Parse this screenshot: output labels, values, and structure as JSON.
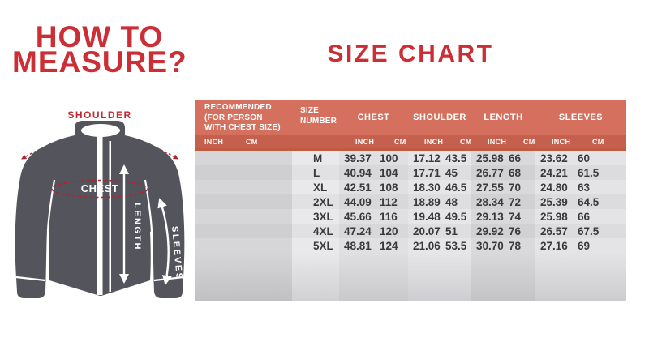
{
  "left_panel": {
    "title_line1": "HOW TO",
    "title_line2": "MEASURE?",
    "jacket": {
      "shoulder_label": "SHOULDER",
      "chest_label": "CHEST",
      "length_label": "LENGTH",
      "sleeves_label": "SLEEVES"
    }
  },
  "size_chart": {
    "title": "SIZE CHART",
    "header": {
      "recommended_lines": [
        "RECOMMENDED",
        "(FOR PERSON",
        "WITH CHEST SIZE)"
      ],
      "size_number_lines": [
        "SIZE",
        "NUMBER"
      ],
      "groups": [
        "CHEST",
        "SHOULDER",
        "LENGTH",
        "SLEEVES"
      ],
      "unit_inch": "INCH",
      "unit_cm": "CM"
    },
    "rows": [
      {
        "size": "M",
        "chest_inch": "39.37",
        "chest_cm": "100",
        "shoulder_inch": "17.12",
        "shoulder_cm": "43.5",
        "length_inch": "25.98",
        "length_cm": "66",
        "sleeves_inch": "23.62",
        "sleeves_cm": "60"
      },
      {
        "size": "L",
        "chest_inch": "40.94",
        "chest_cm": "104",
        "shoulder_inch": "17.71",
        "shoulder_cm": "45",
        "length_inch": "26.77",
        "length_cm": "68",
        "sleeves_inch": "24.21",
        "sleeves_cm": "61.5"
      },
      {
        "size": "XL",
        "chest_inch": "42.51",
        "chest_cm": "108",
        "shoulder_inch": "18.30",
        "shoulder_cm": "46.5",
        "length_inch": "27.55",
        "length_cm": "70",
        "sleeves_inch": "24.80",
        "sleeves_cm": "63"
      },
      {
        "size": "2XL",
        "chest_inch": "44.09",
        "chest_cm": "112",
        "shoulder_inch": "18.89",
        "shoulder_cm": "48",
        "length_inch": "28.34",
        "length_cm": "72",
        "sleeves_inch": "25.39",
        "sleeves_cm": "64.5"
      },
      {
        "size": "3XL",
        "chest_inch": "45.66",
        "chest_cm": "116",
        "shoulder_inch": "19.48",
        "shoulder_cm": "49.5",
        "length_inch": "29.13",
        "length_cm": "74",
        "sleeves_inch": "25.98",
        "sleeves_cm": "66"
      },
      {
        "size": "4XL",
        "chest_inch": "47.24",
        "chest_cm": "120",
        "shoulder_inch": "20.07",
        "shoulder_cm": "51",
        "length_inch": "29.92",
        "length_cm": "76",
        "sleeves_inch": "26.57",
        "sleeves_cm": "67.5"
      },
      {
        "size": "5XL",
        "chest_inch": "48.81",
        "chest_cm": "124",
        "shoulder_inch": "21.06",
        "shoulder_cm": "53.5",
        "length_inch": "30.70",
        "length_cm": "78",
        "sleeves_inch": "27.16",
        "sleeves_cm": "69"
      }
    ],
    "empty_row_count": 3
  },
  "chart_data": {
    "type": "table",
    "title": "SIZE CHART",
    "columns": [
      "SIZE NUMBER",
      "CHEST INCH",
      "CHEST CM",
      "SHOULDER INCH",
      "SHOULDER CM",
      "LENGTH INCH",
      "LENGTH CM",
      "SLEEVES INCH",
      "SLEEVES CM"
    ],
    "rows": [
      [
        "M",
        39.37,
        100,
        17.12,
        43.5,
        25.98,
        66,
        23.62,
        60
      ],
      [
        "L",
        40.94,
        104,
        17.71,
        45,
        26.77,
        68,
        24.21,
        61.5
      ],
      [
        "XL",
        42.51,
        108,
        18.3,
        46.5,
        27.55,
        70,
        24.8,
        63
      ],
      [
        "2XL",
        44.09,
        112,
        18.89,
        48,
        28.34,
        72,
        25.39,
        64.5
      ],
      [
        "3XL",
        45.66,
        116,
        19.48,
        49.5,
        29.13,
        74,
        25.98,
        66
      ],
      [
        "4XL",
        47.24,
        120,
        20.07,
        51,
        29.92,
        76,
        26.57,
        67.5
      ],
      [
        "5XL",
        48.81,
        124,
        21.06,
        53.5,
        30.7,
        78,
        27.16,
        69
      ]
    ]
  },
  "colors": {
    "accent_red": "#cc2e35",
    "dash_red": "#b3232d",
    "label_red": "#c22a32",
    "header_bg": "#d5705e",
    "subheader_bg": "#c6604e",
    "subheader_line": "#c25a42",
    "jacket_gray": "#54545c",
    "table_text": "#3a3a3c"
  },
  "band_colors": {
    "rec": [
      "#d6d6d8",
      "#cfcfd1"
    ],
    "size": [
      "#e9e9eb",
      "#e1e1e3"
    ],
    "chest": [
      "#e0e0e2",
      "#d8d8da"
    ],
    "shoulder": [
      "#e6e6e8",
      "#dedee0"
    ],
    "length": [
      "#d9d9db",
      "#d1d1d3"
    ],
    "sleeves": [
      "#e4e4e6",
      "#dcdcde"
    ]
  }
}
